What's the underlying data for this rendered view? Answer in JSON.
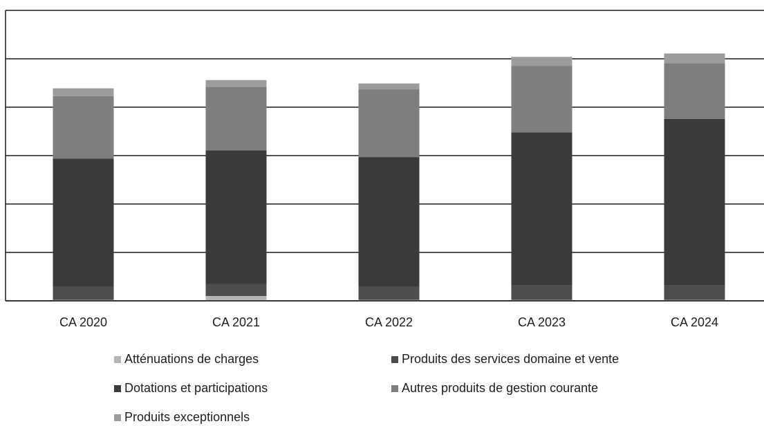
{
  "chart_data": {
    "type": "stacked_bar",
    "categories": [
      "CA 2020",
      "CA 2021",
      "CA 2022",
      "CA 2023",
      "CA 2024"
    ],
    "series": [
      {
        "name": "Atténuations de charges",
        "color": "#b5b5b5",
        "values": [
          0.02,
          0.1,
          0.02,
          0.02,
          0.02
        ]
      },
      {
        "name": "Produits des services domaine et vente",
        "color": "#4d4d4d",
        "values": [
          0.28,
          0.25,
          0.28,
          0.3,
          0.3
        ]
      },
      {
        "name": "Dotations et participations",
        "color": "#3a3a3a",
        "values": [
          2.64,
          2.76,
          2.67,
          3.16,
          3.44
        ]
      },
      {
        "name": "Autres produits de gestion courante",
        "color": "#7e7e7e",
        "values": [
          1.29,
          1.31,
          1.4,
          1.37,
          1.15
        ]
      },
      {
        "name": "Produits exceptionnels",
        "color": "#9c9c9c",
        "values": [
          0.16,
          0.14,
          0.12,
          0.19,
          0.2
        ]
      }
    ],
    "ylim": [
      0,
      6
    ],
    "yticks": [
      0,
      1,
      2,
      3,
      4,
      5,
      6
    ],
    "grid": true,
    "legend": "bottom"
  }
}
